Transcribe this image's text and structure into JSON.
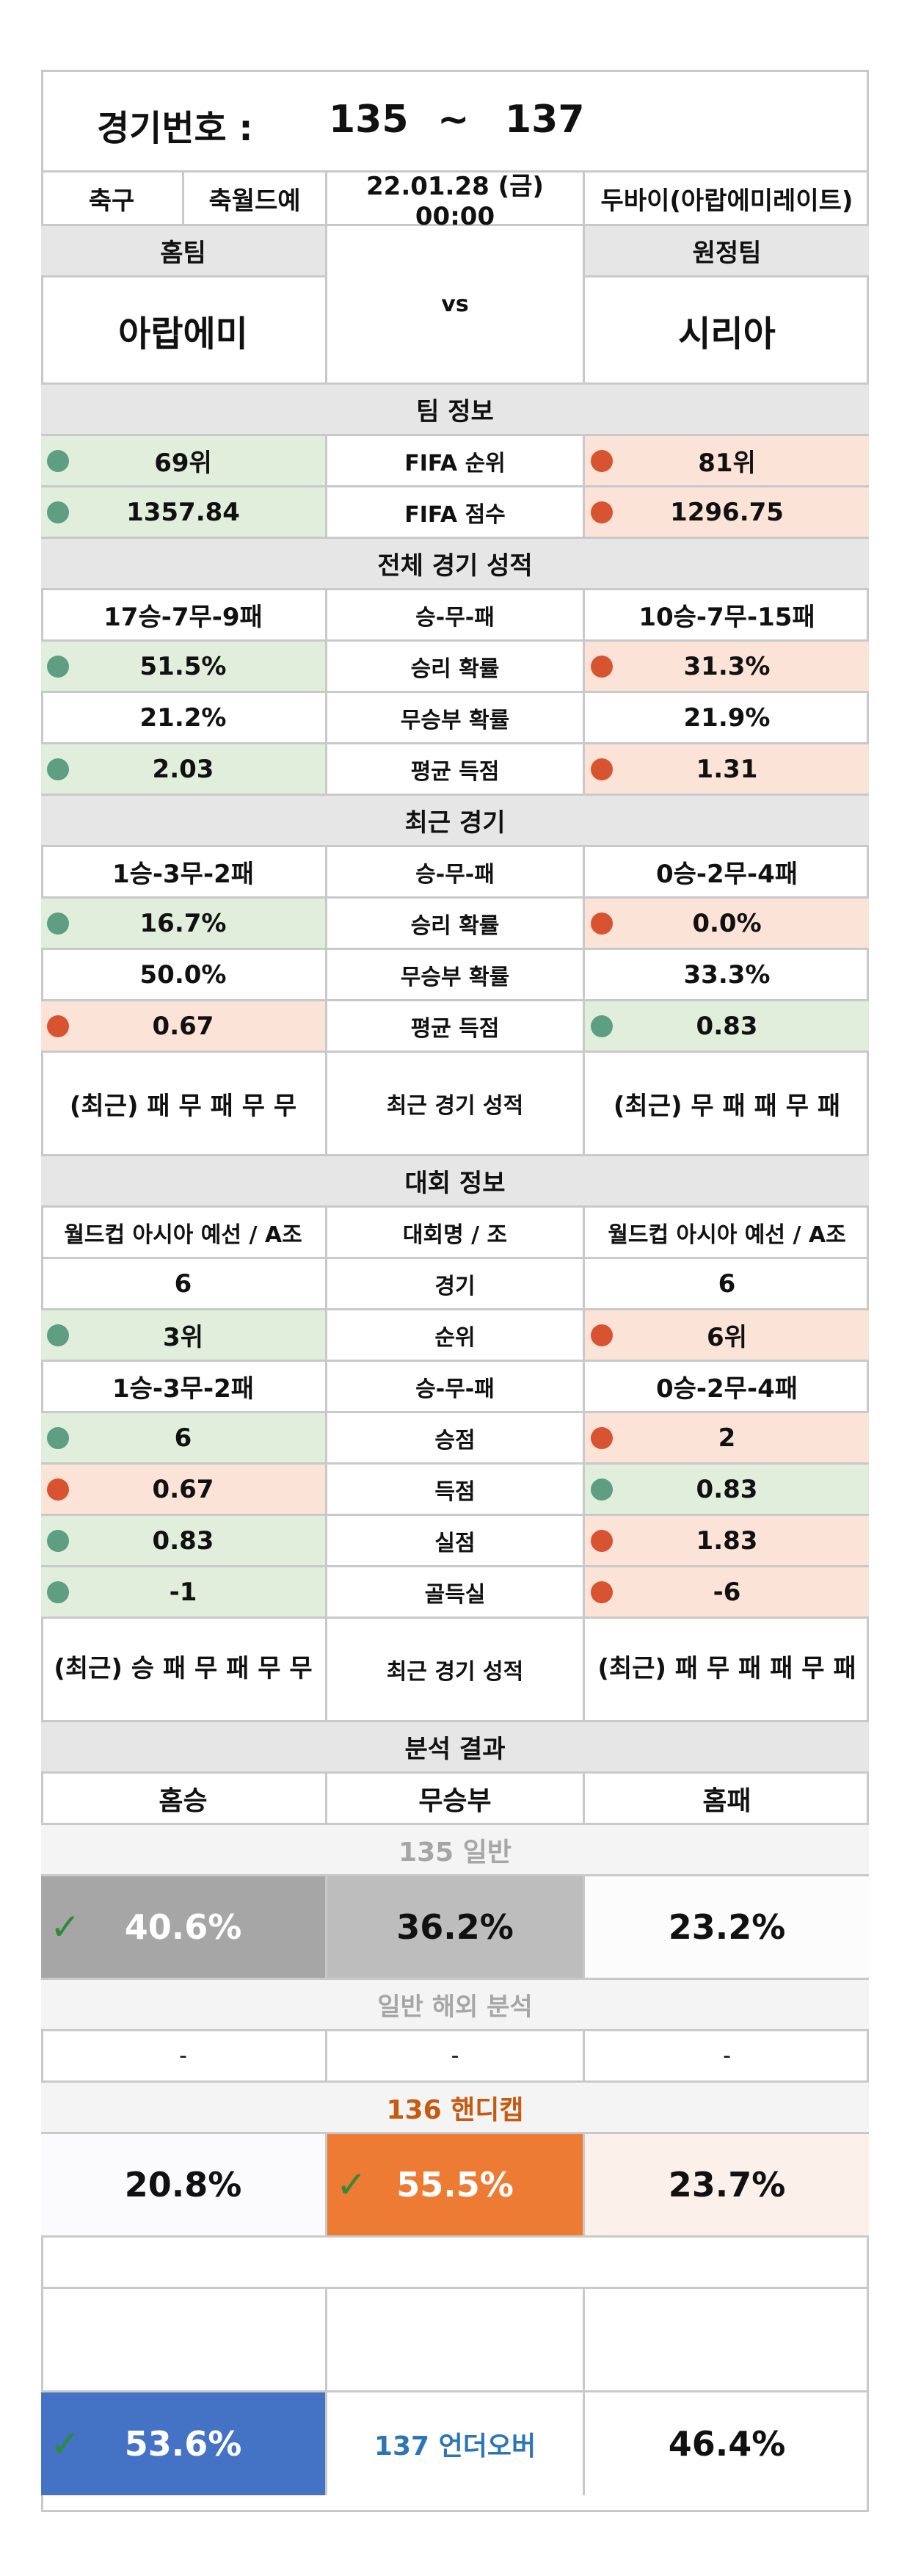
{
  "header": {
    "label": "경기번호 :",
    "start": "135",
    "tilde": "~",
    "end": "137"
  },
  "info": {
    "sport": "축구",
    "league": "축월드예",
    "datetime": "22.01.28 (금) 00:00",
    "venue": "두바이(아랍에미레이트)"
  },
  "teams": {
    "home_label": "홈팀",
    "away_label": "원정팀",
    "home": "아랍에미",
    "vs": "vs",
    "away": "시리아"
  },
  "team_info": {
    "title": "팀 정보",
    "rows": [
      {
        "home": "69위",
        "label": "FIFA 순위",
        "away": "81위"
      },
      {
        "home": "1357.84",
        "label": "FIFA 점수",
        "away": "1296.75"
      }
    ]
  },
  "overall": {
    "title": "전체 경기 성적",
    "rows": [
      {
        "home": "17승-7무-9패",
        "label": "승-무-패",
        "away": "10승-7무-15패"
      },
      {
        "home": "51.5%",
        "label": "승리 확률",
        "away": "31.3%"
      },
      {
        "home": "21.2%",
        "label": "무승부 확률",
        "away": "21.9%"
      },
      {
        "home": "2.03",
        "label": "평균 득점",
        "away": "1.31"
      }
    ]
  },
  "recent": {
    "title": "최근 경기",
    "rows": [
      {
        "home": "1승-3무-2패",
        "label": "승-무-패",
        "away": "0승-2무-4패"
      },
      {
        "home": "16.7%",
        "label": "승리 확률",
        "away": "0.0%"
      },
      {
        "home": "50.0%",
        "label": "무승부 확률",
        "away": "33.3%"
      },
      {
        "home": "0.67",
        "label": "평균 득점",
        "away": "0.83"
      },
      {
        "home": "(최근) 패 무 패 무 무",
        "label": "최근 경기 성적",
        "away": "(최근) 무 패 패 무 패"
      }
    ]
  },
  "tournament": {
    "title": "대회 정보",
    "rows": [
      {
        "home": "월드컵 아시아 예선 / A조",
        "label": "대회명 / 조",
        "away": "월드컵 아시아 예선 / A조"
      },
      {
        "home": "6",
        "label": "경기",
        "away": "6"
      },
      {
        "home": "3위",
        "label": "순위",
        "away": "6위"
      },
      {
        "home": "1승-3무-2패",
        "label": "승-무-패",
        "away": "0승-2무-4패"
      },
      {
        "home": "6",
        "label": "승점",
        "away": "2"
      },
      {
        "home": "0.67",
        "label": "득점",
        "away": "0.83"
      },
      {
        "home": "0.83",
        "label": "실점",
        "away": "1.83"
      },
      {
        "home": "-1",
        "label": "골득실",
        "away": "-6"
      },
      {
        "home": "(최근) 승 패 무 패 무 무",
        "label": "최근 경기 성적",
        "away": "(최근) 패 무 패 패 무 패"
      }
    ]
  },
  "analysis": {
    "title": "분석 결과",
    "cols": [
      "홈승",
      "무승부",
      "홈패"
    ],
    "general_title": "135 일반",
    "general": [
      "40.6%",
      "36.2%",
      "23.2%"
    ],
    "overseas_title": "일반 해외 분석",
    "overseas": [
      "-",
      "-",
      "-"
    ],
    "handicap_title": "136 핸디캡",
    "handicap": [
      "20.8%",
      "55.5%",
      "23.7%"
    ],
    "underover_label": "137 언더오버",
    "underover": [
      "53.6%",
      "46.4%"
    ],
    "check_mark": "✓"
  },
  "colors": {
    "border": "#c9c9c9",
    "grey_band": "#e6e6e6",
    "green_fill": "#e0eedb",
    "salmon_fill": "#fbe3d8",
    "green_dot": "#5e9e82",
    "red_dot": "#d8532f",
    "orange": "#ee7b34",
    "blue": "#4472c4",
    "dark_grey": "#a6a6a6",
    "mid_grey": "#bdbdbd",
    "handicap_title": "#c55a11",
    "underover_text": "#2e75b6"
  }
}
